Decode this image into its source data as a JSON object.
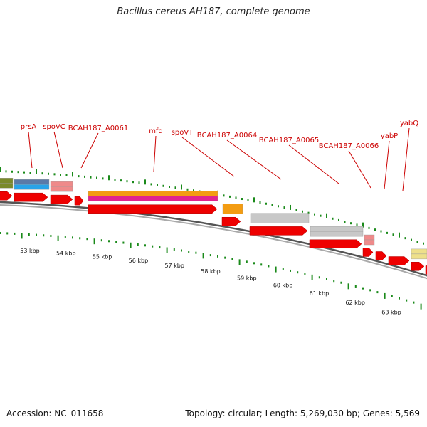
{
  "title": "Bacillus cereus AH187, complete genome",
  "footer": {
    "accession": "Accession: NC_011658",
    "summary": "Topology: circular; Length: 5,269,030 bp; Genes: 5,569"
  },
  "gene_labels": [
    {
      "name": "prsA"
    },
    {
      "name": "spoVC"
    },
    {
      "name": "BCAH187_A0061"
    },
    {
      "name": "mfd"
    },
    {
      "name": "spoVT"
    },
    {
      "name": "BCAH187_A0064"
    },
    {
      "name": "BCAH187_A0065"
    },
    {
      "name": "BCAH187_A0066"
    },
    {
      "name": "yabP"
    },
    {
      "name": "yabQ"
    }
  ],
  "kbp_labels": [
    "53 kbp",
    "54 kbp",
    "55 kbp",
    "56 kbp",
    "57 kbp",
    "58 kbp",
    "59 kbp",
    "60 kbp",
    "61 kbp",
    "62 kbp",
    "63 kbp"
  ],
  "colors": {
    "cds": "#ee0000",
    "label": "#cc0000",
    "tick": "#1a8a1a",
    "backbone": "#777777",
    "orange": "#f39c12",
    "magenta": "#e0248f",
    "grey": "#c8c8c8",
    "pink": "#ef8a8a",
    "blue": "#29a3e8",
    "olive": "#7a8a2a",
    "yellow": "#eee08a"
  }
}
